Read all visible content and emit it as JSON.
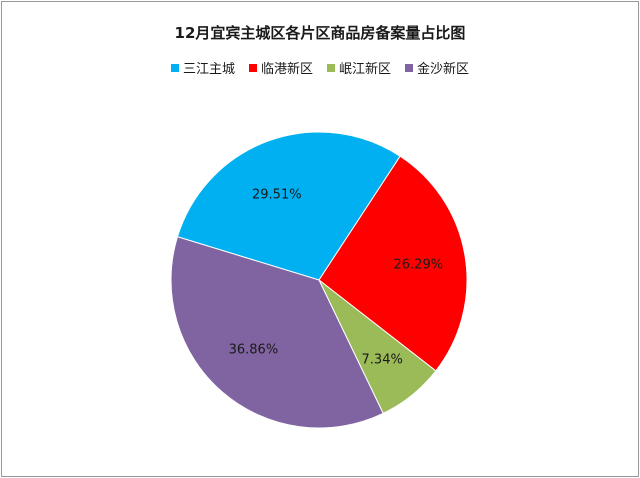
{
  "chart_data": {
    "type": "pie",
    "title": "12月宜宾主城区各片区商品房备案量占比图",
    "legend_position": "top",
    "slices": [
      {
        "name": "三江主城",
        "value": 29.51,
        "label": "29.51%",
        "color": "#00b0f0"
      },
      {
        "name": "临港新区",
        "value": 26.29,
        "label": "26.29%",
        "color": "#ff0000"
      },
      {
        "name": "岷江新区",
        "value": 7.34,
        "label": "7.34%",
        "color": "#9bbb59"
      },
      {
        "name": "金沙新区",
        "value": 36.86,
        "label": "36.86%",
        "color": "#8064a2"
      }
    ]
  }
}
